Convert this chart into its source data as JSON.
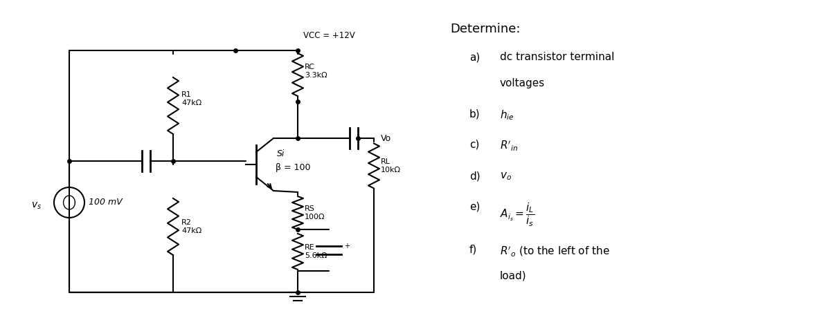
{
  "bg_color": "#ffffff",
  "fig_width": 11.93,
  "fig_height": 4.63,
  "vcc_label": "VCC = +12V",
  "rc_label": "RC\n3.3kΩ",
  "r1_label": "R1\n47kΩ",
  "r2_label": "R2\n47kΩ",
  "rs_label": "RS\n100Ω",
  "re_label": "RE\n5.6kΩ",
  "rl_label": "RL\n10kΩ",
  "si_label": "Si",
  "beta_label": "β = 100",
  "vs_label": "100 mV",
  "vs_sub": "v_s",
  "vo_label": "Vo",
  "determine_title": "Determine:",
  "items": [
    "a)  dc transistor terminal\n      voltages",
    "b)  $h_{ie}$",
    "c)  $R'_{in}$",
    "d)  $v_o$",
    "e)  $A_{i_s} = \\dfrac{i_L}{i_s}$",
    "f)   $R'_o$ (to the left of the\n       load)"
  ]
}
